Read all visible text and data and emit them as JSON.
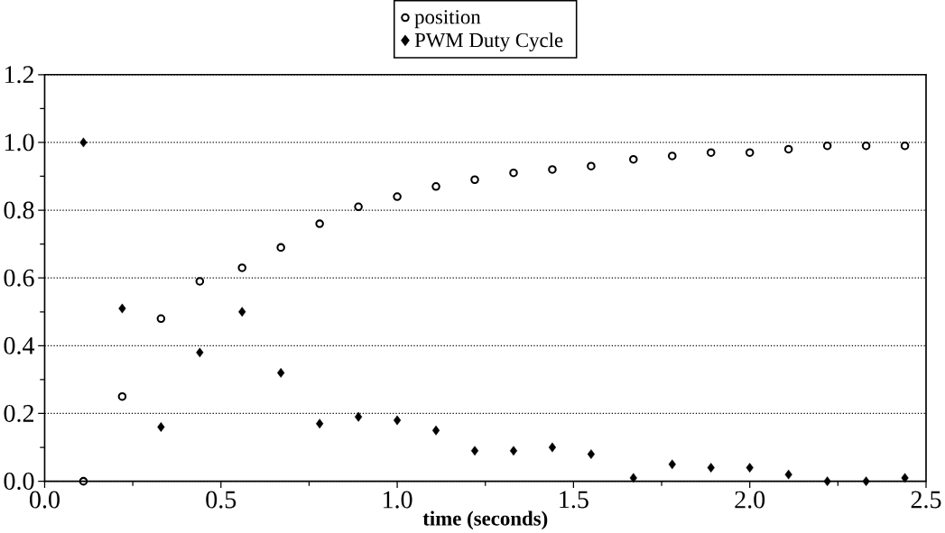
{
  "chart_data": {
    "type": "scatter",
    "xlabel": "time  (seconds)",
    "x": [
      0.11,
      0.22,
      0.33,
      0.44,
      0.56,
      0.67,
      0.78,
      0.89,
      1.0,
      1.11,
      1.22,
      1.33,
      1.44,
      1.55,
      1.67,
      1.78,
      1.89,
      2.0,
      2.11,
      2.22,
      2.33,
      2.44
    ],
    "series": [
      {
        "name": "position",
        "color": "#000000",
        "marker": "circle",
        "values": [
          0.0,
          0.25,
          0.48,
          0.59,
          0.63,
          0.69,
          0.76,
          0.81,
          0.84,
          0.87,
          0.89,
          0.91,
          0.92,
          0.93,
          0.95,
          0.96,
          0.97,
          0.97,
          0.98,
          0.99,
          0.99,
          0.99
        ]
      },
      {
        "name": "PWM Duty Cycle",
        "color": "#000000",
        "marker": "diamond",
        "values": [
          1.0,
          0.51,
          0.16,
          0.38,
          0.5,
          0.32,
          0.17,
          0.19,
          0.18,
          0.15,
          0.09,
          0.09,
          0.1,
          0.08,
          0.01,
          0.05,
          0.04,
          0.04,
          0.02,
          0.0,
          0.0,
          0.01
        ]
      }
    ],
    "xlim": [
      0,
      2.5
    ],
    "xticks": [
      {
        "value": 0,
        "label": "0.0"
      },
      {
        "value": 0.5,
        "label": "0.5"
      },
      {
        "value": 1,
        "label": "1.0"
      },
      {
        "value": 1.5,
        "label": "1.5"
      },
      {
        "value": 2,
        "label": "2.0"
      },
      {
        "value": 2.5,
        "label": "2.5"
      }
    ],
    "ylim": [
      0,
      1.2
    ],
    "yticks": [
      {
        "value": 0,
        "label": "0.0"
      },
      {
        "value": 0.2,
        "label": "0.2"
      },
      {
        "value": 0.4,
        "label": "0.4"
      },
      {
        "value": 0.6,
        "label": "0.6"
      },
      {
        "value": 0.8,
        "label": "0.8"
      },
      {
        "value": 1,
        "label": "1.0"
      },
      {
        "value": 1.2,
        "label": "1.2"
      }
    ],
    "grid": "y",
    "legend": "top"
  }
}
